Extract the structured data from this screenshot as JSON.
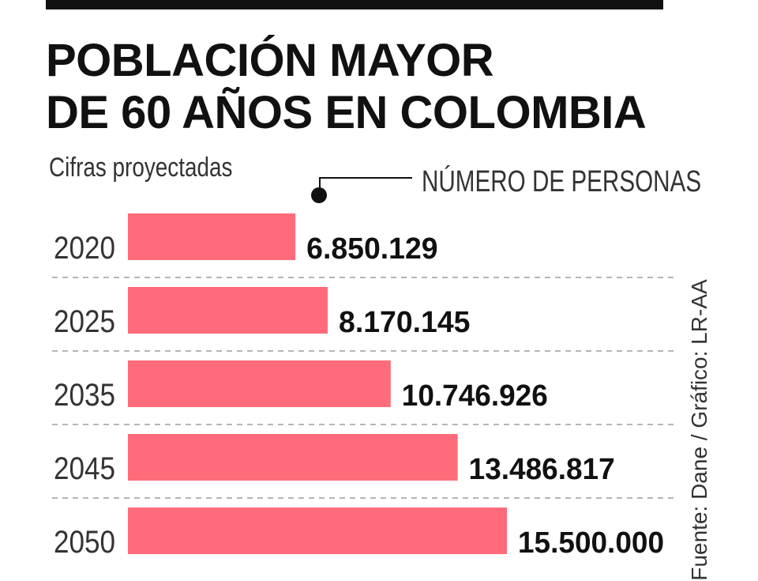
{
  "header": {
    "title_line1": "POBLACIÓN MAYOR",
    "title_line2": "DE 60 AÑOS EN COLOMBIA",
    "subtitle": "Cifras proyectadas",
    "legend_label": "NÚMERO DE PERSONAS"
  },
  "source": "Fuente: Dane / Gráfico: LR-AA",
  "colors": {
    "bar": "#FF6B7A",
    "text": "#111111",
    "divider": "#b5b5b5"
  },
  "chart_data": {
    "type": "bar",
    "orientation": "horizontal",
    "title": "POBLACIÓN MAYOR DE 60 AÑOS EN COLOMBIA",
    "subtitle": "Cifras proyectadas",
    "categories": [
      "2020",
      "2025",
      "2035",
      "2045",
      "2050"
    ],
    "values": [
      6850129,
      8170145,
      10746926,
      13486817,
      15500000
    ],
    "value_labels": [
      "6.850.129",
      "8.170.145",
      "10.746.926",
      "13.486.817",
      "15.500.000"
    ],
    "series": [
      {
        "name": "NÚMERO DE PERSONAS",
        "values": [
          6850129,
          8170145,
          10746926,
          13486817,
          15500000
        ]
      }
    ],
    "xlabel": "",
    "ylabel": "",
    "grid": false,
    "legend": "top-right"
  }
}
